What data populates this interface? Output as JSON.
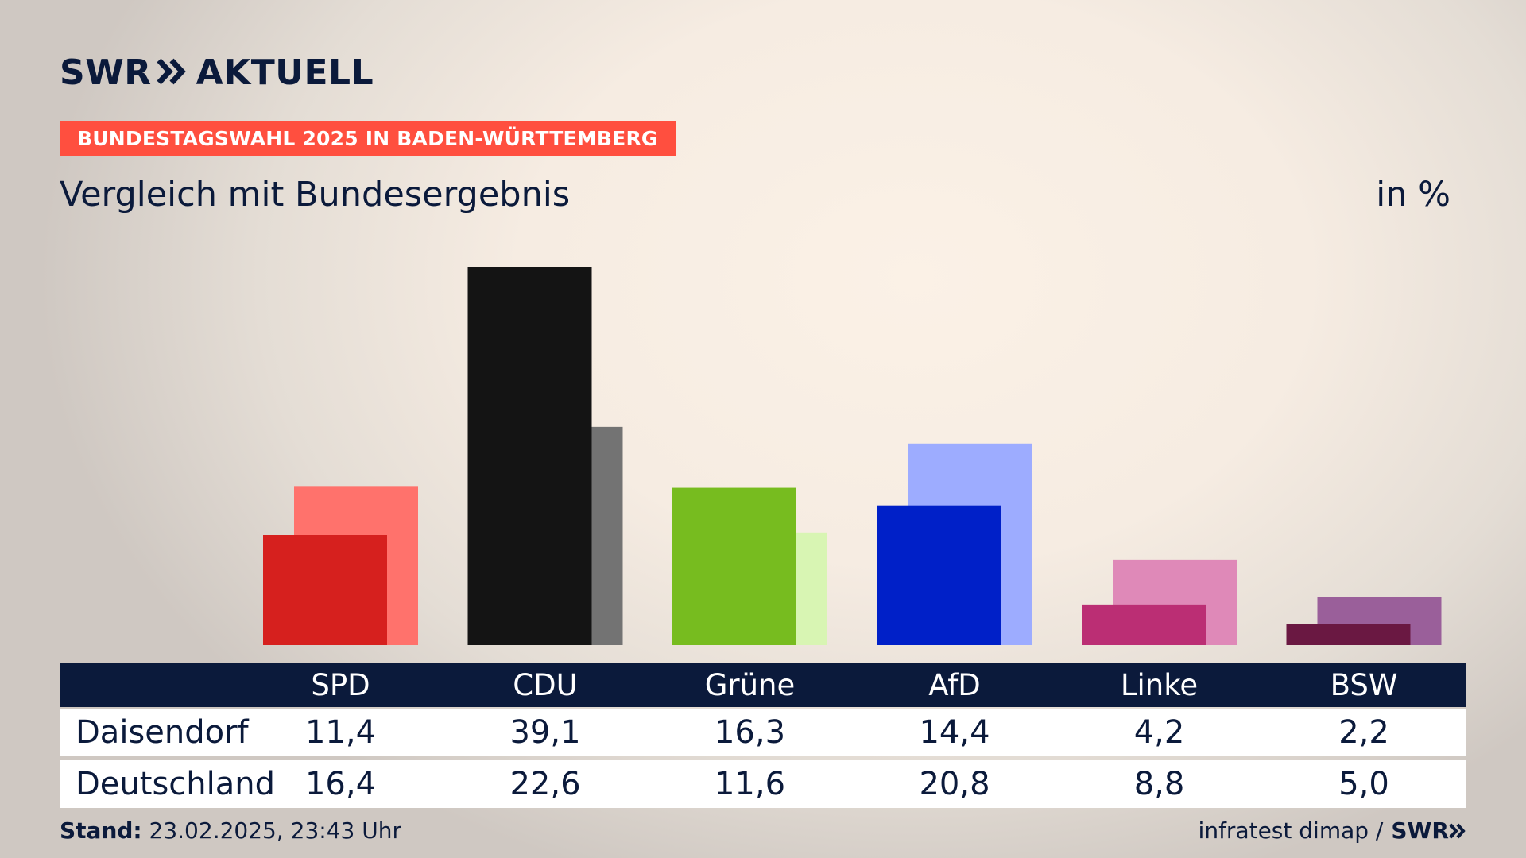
{
  "header": {
    "logo_left": "SWR",
    "logo_right": "AKTUELL",
    "badge": "BUNDESTAGSWAHL 2025 IN BADEN-WÜRTTEMBERG",
    "subtitle": "Vergleich mit Bundesergebnis",
    "unit": "in %"
  },
  "table": {
    "rows": [
      "Daisendorf",
      "Deutschland"
    ]
  },
  "footer": {
    "stand_label": "Stand:",
    "stand_value": "23.02.2025, 23:43 Uhr",
    "source": "infratest dimap /",
    "source_logo": "SWR"
  },
  "colors": {
    "navy": "#0b1a3b",
    "badge": "#ff4f3f"
  },
  "chart_data": {
    "type": "bar",
    "categories": [
      "SPD",
      "CDU",
      "Grüne",
      "AfD",
      "Linke",
      "BSW"
    ],
    "series": [
      {
        "name": "Daisendorf",
        "values": [
          11.4,
          39.1,
          16.3,
          14.4,
          4.2,
          2.2
        ],
        "colors": [
          "#d6201e",
          "#141414",
          "#77bc1f",
          "#0020c8",
          "#bb2e74",
          "#6a1842"
        ]
      },
      {
        "name": "Deutschland",
        "values": [
          16.4,
          22.6,
          11.6,
          20.8,
          8.8,
          5.0
        ],
        "colors": [
          "#ff726c",
          "#737373",
          "#d8f5b3",
          "#9dacff",
          "#df89b8",
          "#9a5f9a"
        ]
      }
    ],
    "value_labels": {
      "Daisendorf": [
        "11,4",
        "39,1",
        "16,3",
        "14,4",
        "4,2",
        "2,2"
      ],
      "Deutschland": [
        "16,4",
        "22,6",
        "11,6",
        "20,8",
        "8,8",
        "5,0"
      ]
    },
    "ylim": [
      0,
      40
    ]
  }
}
